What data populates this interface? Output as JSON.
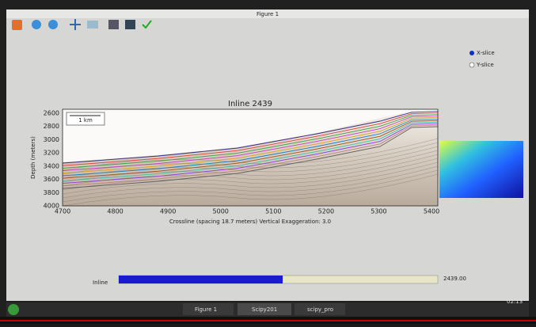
{
  "window": {
    "title": "Figure 1"
  },
  "plot": {
    "title": "Inline 2439",
    "ylabel": "Depth (meters)",
    "xlabel": "Crossline (spacing 18.7 meters) Vertical Exaggeration: 3.0",
    "scale_bar": "1 km",
    "yticks": [
      2600,
      2800,
      3000,
      3200,
      3400,
      3600,
      3800,
      4000
    ],
    "xticks": [
      4700,
      4800,
      4900,
      5000,
      5100,
      5200,
      5300,
      5400
    ]
  },
  "radio": [
    "X-slice",
    "Y-slice"
  ],
  "slider": {
    "label": "Inline",
    "value": "2439.00"
  },
  "taskbar": {
    "items": [
      "Figure 1",
      "Scipy201",
      "scipy_pro"
    ],
    "clock": "02:13"
  }
}
